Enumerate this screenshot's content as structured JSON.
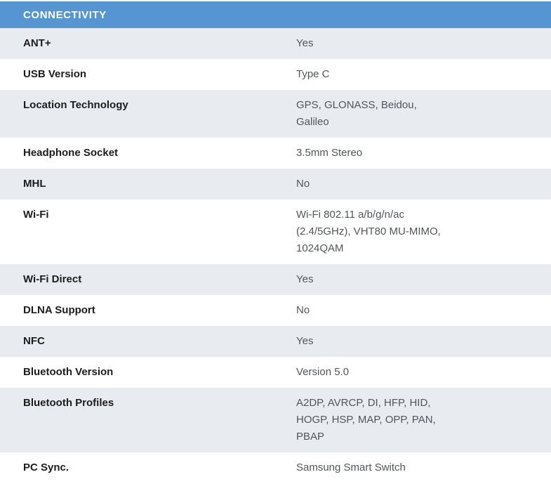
{
  "section": {
    "title": "CONNECTIVITY"
  },
  "colors": {
    "header_bg": "#5596d2",
    "header_text": "#ffffff",
    "row_bg": "#ffffff",
    "row_alt_bg": "#e8ebf0",
    "label_color": "#1c1c1c",
    "value_color": "#52565c"
  },
  "rows": [
    {
      "label": "ANT+",
      "value": "Yes"
    },
    {
      "label": "USB Version",
      "value": "Type C"
    },
    {
      "label": "Location Technology",
      "value": "GPS, GLONASS, Beidou,\nGalileo"
    },
    {
      "label": "Headphone Socket",
      "value": "3.5mm Stereo"
    },
    {
      "label": "MHL",
      "value": "No"
    },
    {
      "label": "Wi-Fi",
      "value": "Wi-Fi 802.11 a/b/g/n/ac\n(2.4/5GHz), VHT80 MU-MIMO,\n1024QAM"
    },
    {
      "label": "Wi-Fi Direct",
      "value": "Yes"
    },
    {
      "label": "DLNA Support",
      "value": "No"
    },
    {
      "label": "NFC",
      "value": "Yes"
    },
    {
      "label": "Bluetooth Version",
      "value": "Version 5.0"
    },
    {
      "label": "Bluetooth Profiles",
      "value": "A2DP, AVRCP, DI, HFP, HID,\nHOGP, HSP, MAP, OPP, PAN,\nPBAP"
    },
    {
      "label": "PC Sync.",
      "value": "Samsung Smart Switch"
    }
  ]
}
